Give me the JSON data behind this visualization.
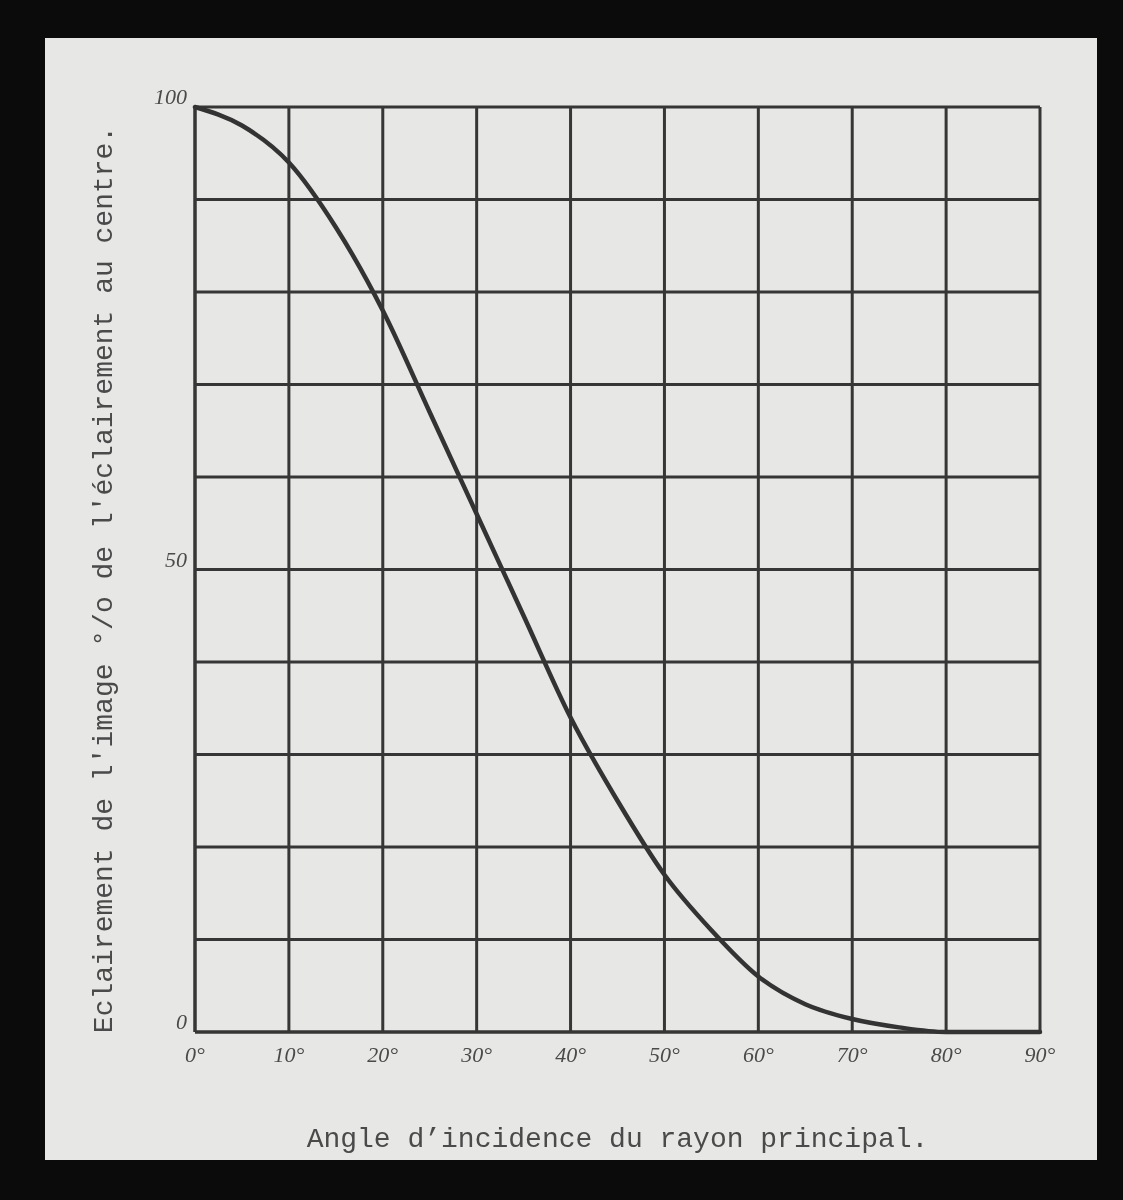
{
  "chart_data": {
    "type": "line",
    "xlabel": "Angle d’incidence du rayon principal.",
    "ylabel": "Eclairement de l'image °/o de l'éclairement au centre.",
    "x": [
      0,
      5,
      10,
      15,
      20,
      25,
      30,
      35,
      40,
      45,
      50,
      55,
      60,
      65,
      70,
      75,
      80,
      85,
      90
    ],
    "series": [
      {
        "color": "#333333",
        "values": [
          100,
          98,
          94,
          87,
          78,
          67,
          56,
          45,
          34,
          25,
          17,
          11,
          6,
          3,
          1.4,
          0.5,
          0,
          0,
          0
        ]
      }
    ],
    "xlim": [
      0,
      90
    ],
    "ylim": [
      0,
      100
    ],
    "xticks": [
      {
        "value": 0,
        "label": "0°"
      },
      {
        "value": 10,
        "label": "10°"
      },
      {
        "value": 20,
        "label": "20°"
      },
      {
        "value": 30,
        "label": "30°"
      },
      {
        "value": 40,
        "label": "40°"
      },
      {
        "value": 50,
        "label": "50°"
      },
      {
        "value": 60,
        "label": "60°"
      },
      {
        "value": 70,
        "label": "70°"
      },
      {
        "value": 80,
        "label": "80°"
      },
      {
        "value": 90,
        "label": "90°"
      }
    ],
    "yticks": [
      0,
      {
        "value": 10,
        "label": null
      },
      {
        "value": 20,
        "label": null
      },
      {
        "value": 30,
        "label": null
      },
      {
        "value": 40,
        "label": null
      },
      50,
      {
        "value": 60,
        "label": null
      },
      {
        "value": 70,
        "label": null
      },
      {
        "value": 80,
        "label": null
      },
      {
        "value": 90,
        "label": null
      },
      100
    ],
    "grid": true,
    "marker": "none",
    "line_style": "solid"
  }
}
